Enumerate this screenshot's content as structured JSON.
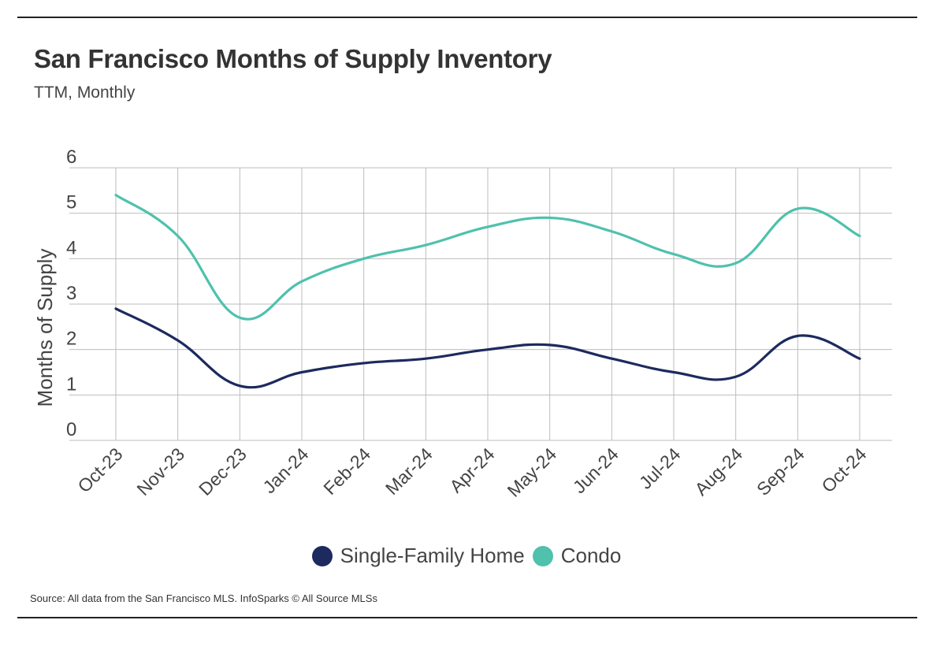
{
  "header": {
    "title": "San Francisco Months of Supply Inventory",
    "subtitle": "TTM, Monthly"
  },
  "footer": {
    "source": "Source:  All data from the San Francisco MLS. InfoSparks © All Source MLSs"
  },
  "chart_data": {
    "type": "line",
    "title": "San Francisco Months of Supply Inventory",
    "subtitle": "TTM, Monthly",
    "xlabel": "",
    "ylabel": "Months of Supply",
    "ylim": [
      0,
      6
    ],
    "yticks": [
      0,
      1,
      2,
      3,
      4,
      5,
      6
    ],
    "grid": true,
    "legend_position": "bottom",
    "categories": [
      "Oct-23",
      "Nov-23",
      "Dec-23",
      "Jan-24",
      "Feb-24",
      "Mar-24",
      "Apr-24",
      "May-24",
      "Jun-24",
      "Jul-24",
      "Aug-24",
      "Sep-24",
      "Oct-24"
    ],
    "series": [
      {
        "name": "Single-Family Home",
        "color": "#1c2a5e",
        "values": [
          2.9,
          2.2,
          1.2,
          1.5,
          1.7,
          1.8,
          2.0,
          2.1,
          1.8,
          1.5,
          1.4,
          2.3,
          1.8
        ]
      },
      {
        "name": "Condo",
        "color": "#4fc1ad",
        "values": [
          5.4,
          4.5,
          2.7,
          3.5,
          4.0,
          4.3,
          4.7,
          4.9,
          4.6,
          4.1,
          3.9,
          5.1,
          4.5
        ]
      }
    ]
  }
}
